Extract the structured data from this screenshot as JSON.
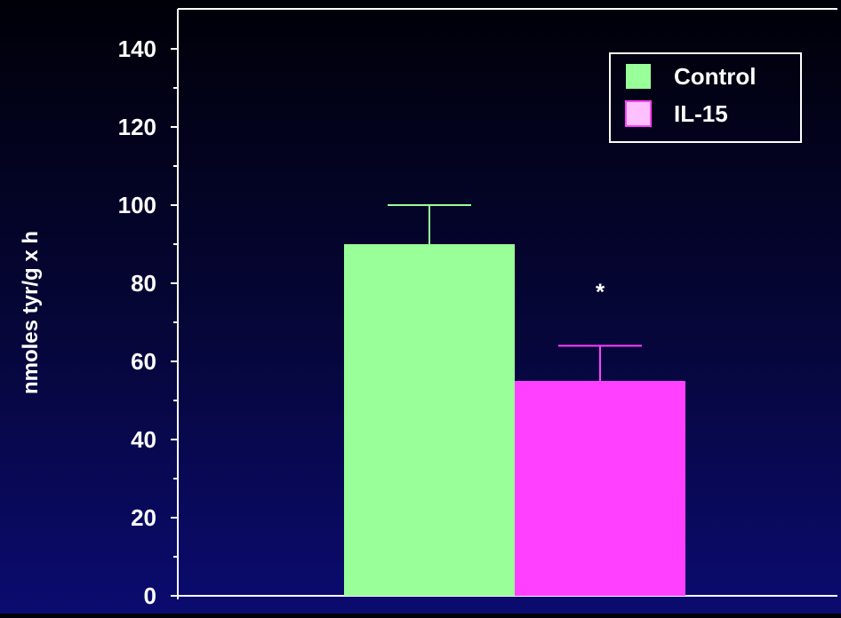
{
  "chart_data": {
    "type": "bar",
    "title": "",
    "xlabel": "",
    "ylabel": "nmoles tyr/g x h",
    "ylim": [
      0,
      150
    ],
    "yticks": [
      0,
      20,
      40,
      60,
      80,
      100,
      120,
      140
    ],
    "grid": false,
    "legend_position": "top-right",
    "categories": [
      ""
    ],
    "series": [
      {
        "name": "Control",
        "values": [
          90
        ],
        "error": [
          10
        ],
        "color": "#99ff99",
        "error_color": "#99ff99",
        "annotation": ""
      },
      {
        "name": "IL-15",
        "values": [
          55
        ],
        "error": [
          9
        ],
        "color": "#ff40ff",
        "error_color": "#ff40ff",
        "annotation": "*"
      }
    ],
    "legend_swatch_colors": [
      "#99ff99",
      "#ffc0ff"
    ],
    "axis_color": "#ffffff"
  }
}
